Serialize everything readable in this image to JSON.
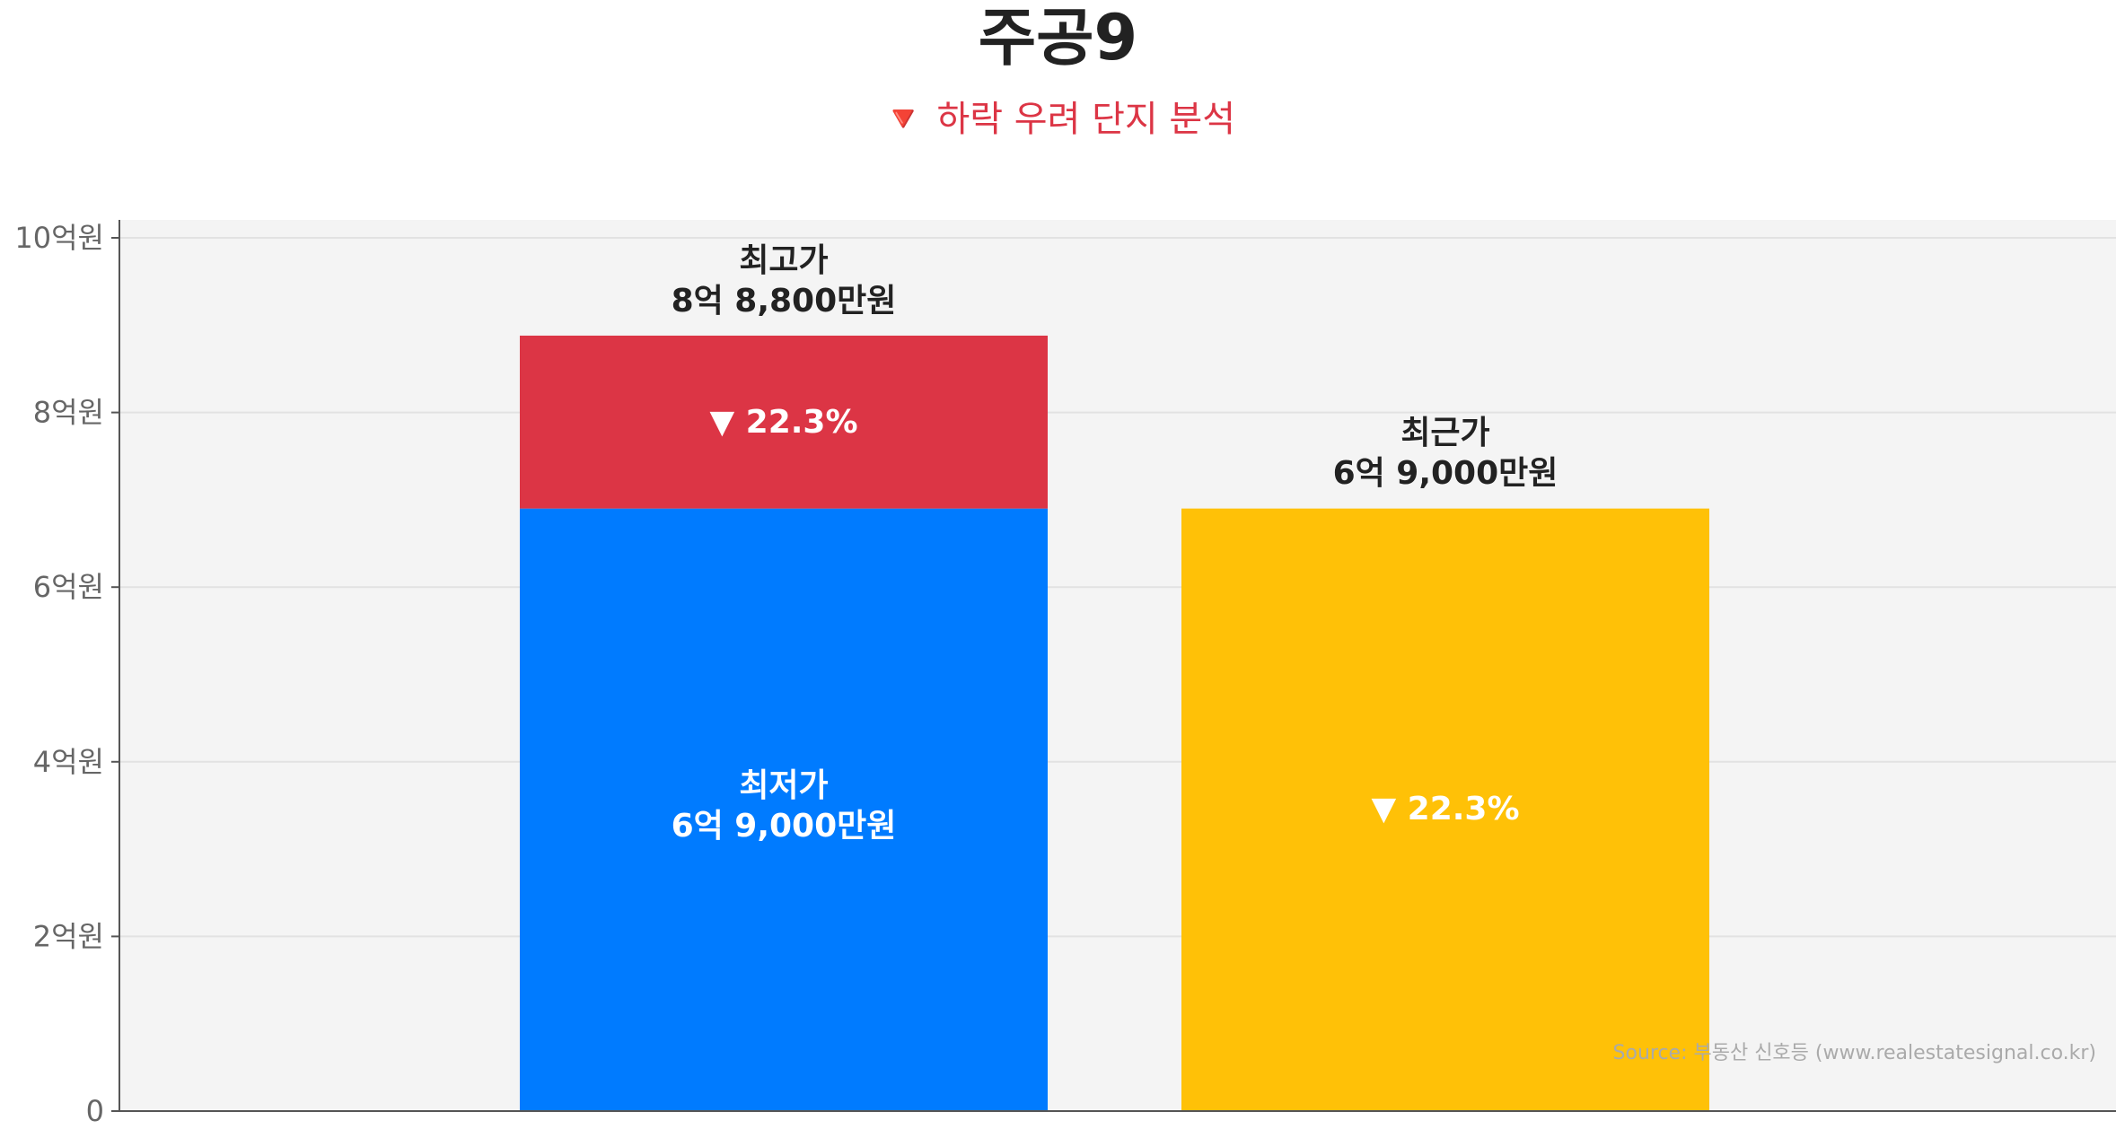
{
  "chart_data": {
    "type": "bar",
    "title": "주공9",
    "subtitle": "🔻 하락 우려 단지 분석",
    "categories": [
      "",
      ""
    ],
    "series": [
      {
        "name": "최저가",
        "values": [
          6.9,
          0
        ],
        "color": "#007bff"
      },
      {
        "name": "최고가",
        "values": [
          1.98,
          0
        ],
        "color": "#dc3545"
      },
      {
        "name": "최근가",
        "values": [
          0,
          6.9
        ],
        "color": "#ffc107"
      }
    ],
    "ylim": [
      0,
      10
    ],
    "y_ticks": [
      {
        "value": 0,
        "label": "0"
      },
      {
        "value": 2,
        "label": "2억원"
      },
      {
        "value": 4,
        "label": "4억원"
      },
      {
        "value": 6,
        "label": "6억원"
      },
      {
        "value": 8,
        "label": "8억원"
      },
      {
        "value": 10,
        "label": "10억원"
      }
    ],
    "grid": true,
    "annotations": {
      "max_label": "최고가",
      "max_value": "8억 8,800만원",
      "min_label": "최저가",
      "min_value": "6억 9,000만원",
      "recent_label": "최근가",
      "recent_value": "6억 9,000만원",
      "drop_on_max": "▼ 22.3%",
      "drop_on_recent": "▼ 22.3%"
    },
    "source": "Source: 부동산 신호등 (www.realestatesignal.co.kr)"
  },
  "colors": {
    "min_bar": "#007bff",
    "max_bar": "#dc3545",
    "recent_bar": "#ffc107",
    "plot_bg": "#f4f4f4",
    "subtitle": "#dc3545"
  }
}
